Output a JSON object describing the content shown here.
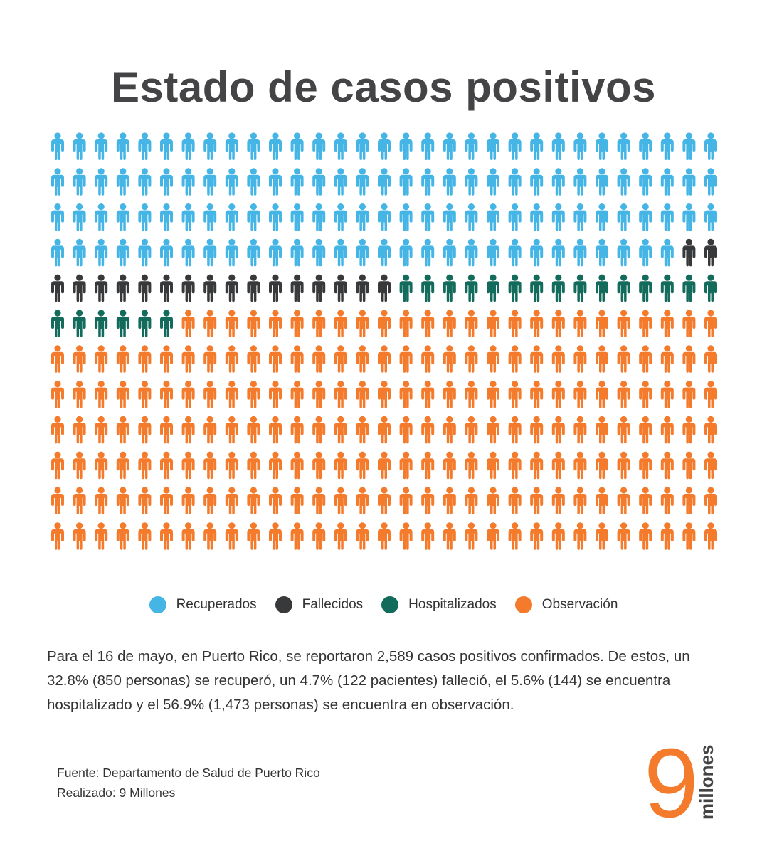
{
  "title": "Estado de casos positivos",
  "chart_data": {
    "type": "waffle",
    "columns": 31,
    "rows": 12,
    "categories": [
      {
        "name": "Recuperados",
        "icons": 122,
        "color": "#45b5e6"
      },
      {
        "name": "Fallecidos",
        "icons": 18,
        "color": "#38393b"
      },
      {
        "name": "Hospitalizados",
        "icons": 21,
        "color": "#136b5c"
      },
      {
        "name": "Observación",
        "icons": 211,
        "color": "#f47a2c"
      }
    ]
  },
  "legend": [
    {
      "label": "Recuperados",
      "color": "#45b5e6"
    },
    {
      "label": "Fallecidos",
      "color": "#38393b"
    },
    {
      "label": "Hospitalizados",
      "color": "#136b5c"
    },
    {
      "label": "Observación",
      "color": "#f47a2c"
    }
  ],
  "description": "Para el 16 de mayo, en Puerto Rico, se reportaron 2,589 casos positivos confirmados. De estos, un 32.8% (850 personas) se recuperó, un 4.7% (122 pacientes) falleció, el 5.6% (144) se encuentra hospitalizado y el 56.9% (1,473 personas) se encuentra en observación.",
  "source": {
    "fuente": "Fuente: Departamento de Salud de Puerto Rico",
    "realizado": "Realizado: 9 Millones"
  },
  "logo": {
    "number": "9",
    "word": "millones",
    "number_color": "#f47a2c",
    "word_color": "#444446"
  }
}
